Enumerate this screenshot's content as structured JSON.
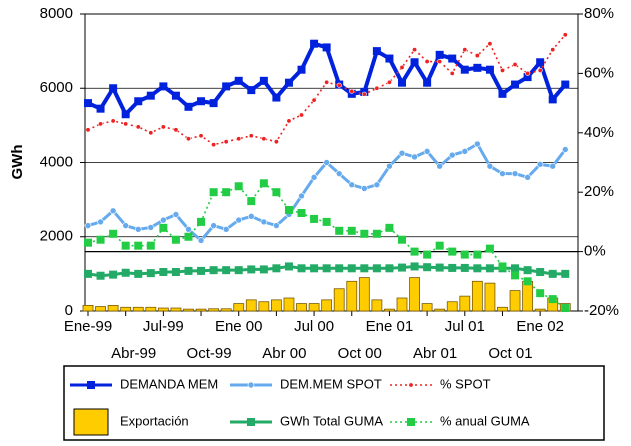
{
  "chart_data": {
    "type": "combo",
    "ylabel": "GWh",
    "categories": [
      "Ene-99",
      null,
      null,
      "Abr-99",
      null,
      null,
      "Jul-99",
      null,
      null,
      "Oct-99",
      null,
      null,
      "Ene 00",
      null,
      null,
      "Abr 00",
      null,
      null,
      "Jul 00",
      null,
      null,
      "Oct 00",
      null,
      null,
      "Ene 01",
      null,
      null,
      "Abr 01",
      null,
      null,
      "Jul 01",
      null,
      null,
      "Oct 01",
      null,
      null,
      "Ene 02",
      null,
      null
    ],
    "ylim": [
      0,
      8000
    ],
    "yticks": [
      0,
      2000,
      4000,
      6000,
      8000
    ],
    "y2lim": [
      -20,
      80
    ],
    "y2ticks": [
      {
        "value": -20,
        "label": "-20%"
      },
      {
        "value": 0,
        "label": "0%"
      },
      {
        "value": 20,
        "label": "20%"
      },
      {
        "value": 40,
        "label": "40%"
      },
      {
        "value": 60,
        "label": "60%"
      },
      {
        "value": 80,
        "label": "80%"
      }
    ],
    "grid": true,
    "series": [
      {
        "name": "DEMANDA MEM",
        "kind": "line",
        "marker": "square",
        "dash": false,
        "color": "#0022dd",
        "axis": "y",
        "values": [
          5600,
          5450,
          6000,
          5300,
          5650,
          5800,
          6050,
          5800,
          5500,
          5650,
          5600,
          6050,
          6200,
          5950,
          6200,
          5750,
          6150,
          6500,
          7200,
          7100,
          6100,
          5850,
          5900,
          7000,
          6800,
          6150,
          6700,
          6150,
          6900,
          6800,
          6500,
          6550,
          6500,
          5850,
          6100,
          6300,
          6700,
          5700,
          6100
        ]
      },
      {
        "name": "DEM.MEM SPOT",
        "kind": "line",
        "marker": "circle",
        "dash": false,
        "color": "#66aaee",
        "axis": "y",
        "values": [
          2300,
          2400,
          2700,
          2300,
          2200,
          2250,
          2450,
          2600,
          2200,
          1900,
          2300,
          2200,
          2450,
          2550,
          2400,
          2300,
          2600,
          3100,
          3600,
          4000,
          3700,
          3400,
          3300,
          3400,
          3900,
          4250,
          4150,
          4300,
          3900,
          4200,
          4300,
          4500,
          3900,
          3700,
          3700,
          3600,
          3950,
          3900,
          4350
        ]
      },
      {
        "name": "% SPOT",
        "kind": "line",
        "marker": "circle",
        "dash": true,
        "color": "#ee2222",
        "axis": "y2",
        "values": [
          41,
          43,
          44,
          43,
          42,
          40,
          42,
          41,
          38,
          39,
          36,
          37,
          38,
          39,
          38,
          37,
          44,
          46,
          51,
          57,
          56,
          54,
          53,
          55,
          57,
          62,
          68,
          64,
          64,
          60,
          68,
          66,
          70,
          61,
          63,
          60,
          61,
          68,
          73
        ]
      },
      {
        "name": "Exportación",
        "kind": "bar",
        "marker": "none",
        "dash": false,
        "color": "#ffcc00",
        "axis": "y",
        "values": [
          150,
          120,
          150,
          100,
          100,
          100,
          80,
          80,
          50,
          50,
          60,
          60,
          200,
          300,
          250,
          300,
          350,
          200,
          200,
          300,
          600,
          800,
          900,
          300,
          50,
          350,
          900,
          200,
          50,
          250,
          400,
          800,
          750,
          100,
          550,
          800,
          50,
          350,
          200
        ]
      },
      {
        "name": "GWh Total GUMA",
        "kind": "line",
        "marker": "square",
        "dash": false,
        "color": "#22aa66",
        "axis": "y",
        "values": [
          1000,
          950,
          980,
          1030,
          1000,
          1020,
          1050,
          1050,
          1080,
          1080,
          1100,
          1100,
          1100,
          1120,
          1120,
          1150,
          1200,
          1150,
          1150,
          1150,
          1150,
          1150,
          1150,
          1150,
          1150,
          1170,
          1200,
          1180,
          1170,
          1160,
          1160,
          1150,
          1150,
          1150,
          1150,
          1100,
          1050,
          1000,
          1000
        ]
      },
      {
        "name": "% anual GUMA",
        "kind": "line",
        "marker": "square",
        "dash": true,
        "color": "#22cc44",
        "axis": "y2",
        "values": [
          3,
          4,
          6,
          2,
          2,
          2,
          8,
          4,
          5,
          10,
          20,
          20,
          22,
          17,
          23,
          20,
          14,
          13,
          11,
          10,
          7,
          7,
          6,
          6,
          8,
          4,
          0,
          -1,
          2,
          0,
          -1,
          -1,
          1,
          -5,
          -8,
          -10,
          -14,
          -16,
          -19
        ]
      }
    ]
  }
}
